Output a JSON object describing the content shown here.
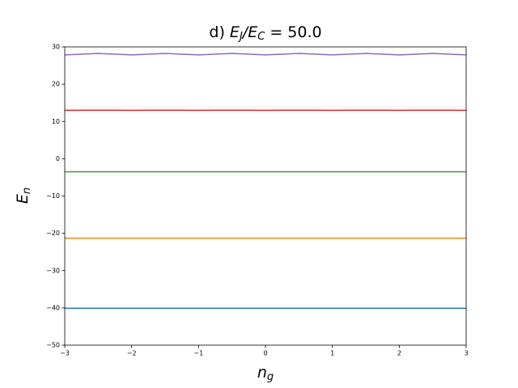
{
  "chart_data": {
    "type": "line",
    "title": [
      "d) ",
      "E",
      "J",
      "/",
      "E",
      "C",
      " =  50.0"
    ],
    "xlabel": [
      "n",
      "g"
    ],
    "ylabel": [
      "E",
      "n"
    ],
    "x": [
      -3,
      -2.75,
      -2.5,
      -2.25,
      -2,
      -1.75,
      -1.5,
      -1.25,
      -1,
      -0.75,
      -0.5,
      -0.25,
      0,
      0.25,
      0.5,
      0.75,
      1,
      1.25,
      1.5,
      1.75,
      2,
      2.25,
      2.5,
      2.75,
      3
    ],
    "series": [
      {
        "color": "#1f77b4",
        "values": [
          -40.1,
          -40.1,
          -40.1,
          -40.1,
          -40.1,
          -40.1,
          -40.1,
          -40.1,
          -40.1,
          -40.1,
          -40.1,
          -40.1,
          -40.1,
          -40.1,
          -40.1,
          -40.1,
          -40.1,
          -40.1,
          -40.1,
          -40.1,
          -40.1,
          -40.1,
          -40.1,
          -40.1,
          -40.1
        ]
      },
      {
        "color": "#ff7f0e",
        "values": [
          -21.3,
          -21.3,
          -21.3,
          -21.3,
          -21.3,
          -21.3,
          -21.3,
          -21.3,
          -21.3,
          -21.3,
          -21.3,
          -21.3,
          -21.3,
          -21.3,
          -21.3,
          -21.3,
          -21.3,
          -21.3,
          -21.3,
          -21.3,
          -21.3,
          -21.3,
          -21.3,
          -21.3,
          -21.3
        ]
      },
      {
        "color": "#2ca02c",
        "values": [
          -3.5,
          -3.5,
          -3.5,
          -3.5,
          -3.5,
          -3.5,
          -3.5,
          -3.5,
          -3.5,
          -3.5,
          -3.5,
          -3.5,
          -3.5,
          -3.5,
          -3.5,
          -3.5,
          -3.5,
          -3.5,
          -3.5,
          -3.5,
          -3.5,
          -3.5,
          -3.5,
          -3.5,
          -3.5
        ]
      },
      {
        "color": "#d62728",
        "values": [
          12.99,
          13.0,
          13.01,
          13.0,
          12.99,
          13.0,
          13.01,
          13.0,
          12.99,
          13.0,
          13.01,
          13.0,
          12.99,
          13.0,
          13.01,
          13.0,
          12.99,
          13.0,
          13.01,
          13.0,
          12.99,
          13.0,
          13.01,
          13.0,
          12.99
        ]
      },
      {
        "color": "#9467bd",
        "values": [
          27.85,
          28.05,
          28.25,
          28.05,
          27.85,
          28.05,
          28.25,
          28.05,
          27.85,
          28.05,
          28.25,
          28.05,
          27.85,
          28.05,
          28.25,
          28.05,
          27.85,
          28.05,
          28.25,
          28.05,
          27.85,
          28.05,
          28.25,
          28.05,
          27.85
        ]
      }
    ],
    "xlim": [
      -3,
      3
    ],
    "xticks": [
      {
        "value": -3,
        "label": "−3"
      },
      {
        "value": -2,
        "label": "−2"
      },
      {
        "value": -1,
        "label": "−1"
      },
      0,
      1,
      2,
      3
    ],
    "ylim": [
      -50,
      30
    ],
    "yticks": [
      {
        "value": -50,
        "label": "−50"
      },
      {
        "value": -40,
        "label": "−40"
      },
      {
        "value": -30,
        "label": "−30"
      },
      {
        "value": -20,
        "label": "−20"
      },
      {
        "value": -10,
        "label": "−10"
      },
      0,
      10,
      20,
      30
    ],
    "grid": false
  }
}
